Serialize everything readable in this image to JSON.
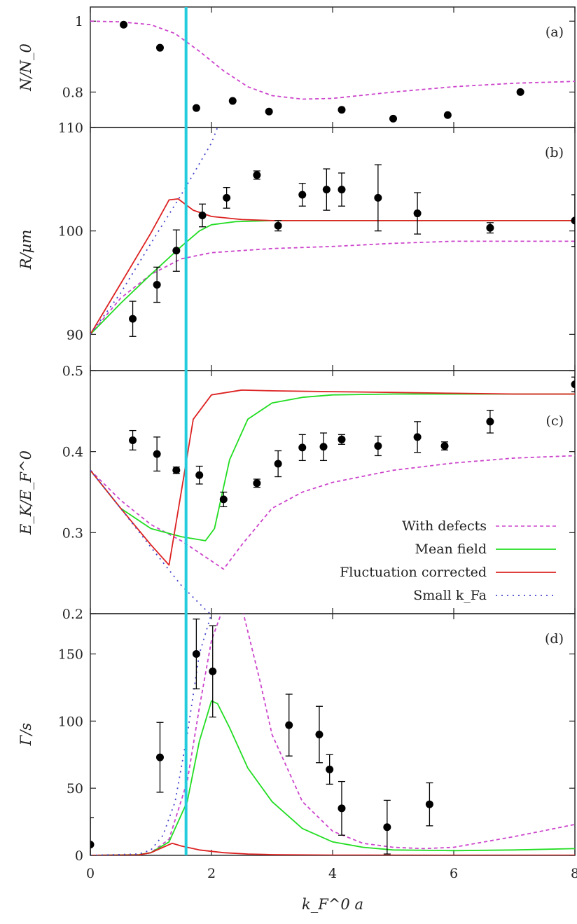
{
  "figure": {
    "xlabel": "k_F^0 a",
    "x_ticks": [
      "0",
      "2",
      "4",
      "6",
      "8"
    ],
    "xlim": [
      0,
      8
    ],
    "vertical_line": {
      "x": 1.58,
      "color": "#22ccdd"
    }
  },
  "legend": {
    "with_defects": "With defects",
    "mean_field": "Mean field",
    "fluct": "Fluctuation corrected",
    "small_kfa": "Small k_Fa"
  },
  "colors": {
    "with_defects": "#cc44cc",
    "mean_field": "#22dd22",
    "fluct": "#dd2222",
    "small_kfa": "#4444cc",
    "points": "#000000",
    "vline": "#22ccdd"
  },
  "chart_data": [
    {
      "type": "scatter",
      "panel": "(a)",
      "ylabel": "N/N_0",
      "ylim": [
        0.7,
        1.04
      ],
      "y_ticks": [
        1,
        0.8
      ],
      "y_tick_labels": [
        "1",
        "0.8"
      ],
      "points": [
        {
          "x": 0.55,
          "y": 0.99
        },
        {
          "x": 1.15,
          "y": 0.925
        },
        {
          "x": 1.75,
          "y": 0.755
        },
        {
          "x": 2.35,
          "y": 0.775
        },
        {
          "x": 2.95,
          "y": 0.745
        },
        {
          "x": 4.15,
          "y": 0.75
        },
        {
          "x": 5.0,
          "y": 0.725
        },
        {
          "x": 5.9,
          "y": 0.735
        },
        {
          "x": 7.1,
          "y": 0.8
        }
      ],
      "series": [
        {
          "key": "with_defects",
          "style": "dashed",
          "x": [
            0,
            0.5,
            1.0,
            1.4,
            1.8,
            2.2,
            2.6,
            3.0,
            3.5,
            4.0,
            5.0,
            6.0,
            7.0,
            8.0
          ],
          "y": [
            1.0,
            0.998,
            0.99,
            0.965,
            0.915,
            0.86,
            0.815,
            0.79,
            0.78,
            0.782,
            0.8,
            0.815,
            0.825,
            0.83
          ]
        }
      ]
    },
    {
      "type": "line",
      "panel": "(b)",
      "ylabel": "R/µm",
      "ylim": [
        86.5,
        110
      ],
      "y_ticks": [
        110,
        100,
        90
      ],
      "y_tick_labels": [
        "110",
        "100",
        "90"
      ],
      "points": [
        {
          "x": 0.7,
          "y": 91.5,
          "err": 1.7
        },
        {
          "x": 1.1,
          "y": 94.8,
          "err": 1.7
        },
        {
          "x": 1.42,
          "y": 98.1,
          "err": 2.0
        },
        {
          "x": 1.85,
          "y": 101.5,
          "err": 1.1
        },
        {
          "x": 2.25,
          "y": 103.2,
          "err": 1.0
        },
        {
          "x": 2.75,
          "y": 105.4,
          "err": 0.4
        },
        {
          "x": 3.1,
          "y": 100.5,
          "err": 0.5
        },
        {
          "x": 3.5,
          "y": 103.5,
          "err": 1.1
        },
        {
          "x": 3.9,
          "y": 104.0,
          "err": 2.0
        },
        {
          "x": 4.15,
          "y": 104.0,
          "err": 1.6
        },
        {
          "x": 4.75,
          "y": 103.2,
          "err": 3.2
        },
        {
          "x": 5.4,
          "y": 101.7,
          "err": 2.0
        },
        {
          "x": 6.6,
          "y": 100.3,
          "err": 0.5
        },
        {
          "x": 8.0,
          "y": 101.0,
          "err": 2.5
        }
      ],
      "series": [
        {
          "key": "with_defects",
          "style": "dashed",
          "x": [
            0,
            0.5,
            1.0,
            1.5,
            2.0,
            2.5,
            3.0,
            4.0,
            5.0,
            6.0,
            7.0,
            8.0
          ],
          "y": [
            90,
            93.5,
            95.8,
            97.3,
            97.9,
            98.1,
            98.3,
            98.5,
            98.8,
            99.0,
            99.0,
            99.0
          ]
        },
        {
          "key": "mean_field",
          "style": "solid",
          "x": [
            0,
            0.5,
            1.0,
            1.5,
            1.8,
            2.0,
            2.4,
            3.0,
            4.0,
            5.0,
            6.0,
            7.0,
            8.0
          ],
          "y": [
            90,
            93.0,
            95.8,
            98.5,
            100.0,
            100.6,
            100.9,
            101.0,
            101.0,
            101.0,
            101.0,
            101.0,
            101.0
          ]
        },
        {
          "key": "fluct",
          "style": "solid",
          "x": [
            0,
            0.5,
            1.0,
            1.3,
            1.45,
            1.7,
            2.0,
            2.5,
            3.0,
            4.0,
            5.0,
            6.0,
            7.0,
            8.0
          ],
          "y": [
            90,
            94.9,
            99.8,
            103.0,
            103.1,
            102.0,
            101.4,
            101.1,
            101.0,
            101.0,
            101.0,
            101.0,
            101.0,
            101.0
          ]
        },
        {
          "key": "small_kfa",
          "style": "dotted",
          "x": [
            0,
            0.5,
            1.0,
            1.5,
            2.0,
            2.1
          ],
          "y": [
            90,
            94.0,
            98.8,
            103.5,
            108.5,
            110.0
          ]
        }
      ]
    },
    {
      "type": "line",
      "panel": "(c)",
      "ylabel": "E_K/E_F^0",
      "ylim": [
        0.2,
        0.5
      ],
      "y_ticks": [
        0.5,
        0.4,
        0.3,
        0.2
      ],
      "y_tick_labels": [
        "0.5",
        "0.4",
        "0.3",
        "0.2"
      ],
      "points": [
        {
          "x": 0.7,
          "y": 0.414,
          "err": 0.012
        },
        {
          "x": 1.1,
          "y": 0.397,
          "err": 0.021
        },
        {
          "x": 1.42,
          "y": 0.377,
          "err": 0.004
        },
        {
          "x": 1.8,
          "y": 0.371,
          "err": 0.011
        },
        {
          "x": 2.2,
          "y": 0.341,
          "err": 0.009
        },
        {
          "x": 2.75,
          "y": 0.361,
          "err": 0.005
        },
        {
          "x": 3.1,
          "y": 0.385,
          "err": 0.016
        },
        {
          "x": 3.5,
          "y": 0.405,
          "err": 0.016
        },
        {
          "x": 3.85,
          "y": 0.406,
          "err": 0.017
        },
        {
          "x": 4.15,
          "y": 0.415,
          "err": 0.006
        },
        {
          "x": 4.75,
          "y": 0.407,
          "err": 0.012
        },
        {
          "x": 5.4,
          "y": 0.418,
          "err": 0.019
        },
        {
          "x": 5.85,
          "y": 0.407,
          "err": 0.005
        },
        {
          "x": 6.6,
          "y": 0.437,
          "err": 0.014
        },
        {
          "x": 8.0,
          "y": 0.483,
          "err": 0.009
        }
      ],
      "series": [
        {
          "key": "with_defects",
          "style": "dashed",
          "x": [
            0,
            0.5,
            1.0,
            1.5,
            2.0,
            2.2,
            2.5,
            3.0,
            3.5,
            4.0,
            5.0,
            6.0,
            7.0,
            8.0
          ],
          "y": [
            0.377,
            0.34,
            0.31,
            0.29,
            0.265,
            0.255,
            0.285,
            0.33,
            0.35,
            0.362,
            0.377,
            0.386,
            0.392,
            0.395
          ]
        },
        {
          "key": "mean_field",
          "style": "solid",
          "x": [
            0,
            0.5,
            1.0,
            1.5,
            1.9,
            2.05,
            2.3,
            2.6,
            3.0,
            3.5,
            4.0,
            5.0,
            6.0,
            7.0,
            8.0
          ],
          "y": [
            0.377,
            0.33,
            0.305,
            0.295,
            0.29,
            0.305,
            0.39,
            0.44,
            0.46,
            0.467,
            0.47,
            0.471,
            0.471,
            0.471,
            0.471
          ]
        },
        {
          "key": "fluct",
          "style": "solid",
          "x": [
            0,
            0.5,
            1.0,
            1.3,
            1.5,
            1.7,
            2.0,
            2.5,
            3.0,
            4.0,
            5.0,
            6.0,
            7.0,
            8.0
          ],
          "y": [
            0.377,
            0.33,
            0.285,
            0.26,
            0.35,
            0.44,
            0.47,
            0.476,
            0.475,
            0.474,
            0.473,
            0.472,
            0.471,
            0.471
          ]
        },
        {
          "key": "small_kfa",
          "style": "dotted",
          "x": [
            0,
            0.5,
            1.0,
            1.5,
            1.9,
            2.05
          ],
          "y": [
            0.377,
            0.33,
            0.282,
            0.235,
            0.205,
            0.195
          ]
        }
      ]
    },
    {
      "type": "line",
      "panel": "(d)",
      "ylabel": "Γ/s",
      "ylim": [
        0,
        180
      ],
      "y_ticks": [
        150,
        100,
        50,
        0
      ],
      "y_tick_labels": [
        "150",
        "100",
        "50",
        "0"
      ],
      "points": [
        {
          "x": 0.0,
          "y": 8,
          "err": 20
        },
        {
          "x": 1.15,
          "y": 73,
          "err": 26
        },
        {
          "x": 1.75,
          "y": 150,
          "err": 26
        },
        {
          "x": 2.02,
          "y": 137,
          "err": 34
        },
        {
          "x": 3.28,
          "y": 97,
          "err": 23
        },
        {
          "x": 3.78,
          "y": 90,
          "err": 21
        },
        {
          "x": 3.95,
          "y": 64,
          "err": 11
        },
        {
          "x": 4.15,
          "y": 35,
          "err": 20
        },
        {
          "x": 4.9,
          "y": 21,
          "err": 20
        },
        {
          "x": 5.6,
          "y": 38,
          "err": 16
        }
      ],
      "series": [
        {
          "key": "with_defects",
          "style": "dashed",
          "x": [
            0,
            0.8,
            1.0,
            1.3,
            1.6,
            1.8,
            2.0,
            2.2,
            2.35,
            2.5,
            2.8,
            3.0,
            3.5,
            4.0,
            4.5,
            5.0,
            5.5,
            6.0,
            7.0,
            8.0
          ],
          "y": [
            0,
            0.5,
            2,
            12,
            55,
            110,
            160,
            185,
            195,
            185,
            130,
            90,
            40,
            18,
            9,
            6,
            5,
            6,
            14,
            23
          ]
        },
        {
          "key": "mean_field",
          "style": "solid",
          "x": [
            0,
            0.8,
            1.0,
            1.3,
            1.6,
            1.8,
            2.0,
            2.1,
            2.3,
            2.6,
            3.0,
            3.5,
            4.0,
            4.5,
            5.0,
            6.0,
            7.0,
            8.0
          ],
          "y": [
            0,
            0.5,
            2,
            10,
            40,
            85,
            115,
            113,
            95,
            65,
            40,
            20,
            10,
            6,
            4,
            3.5,
            4,
            5
          ]
        },
        {
          "key": "fluct",
          "style": "solid",
          "x": [
            0,
            0.8,
            1.0,
            1.2,
            1.35,
            1.5,
            1.8,
            2.2,
            2.6,
            3.0,
            4.0,
            6.0,
            8.0
          ],
          "y": [
            0,
            0.3,
            2,
            6,
            9,
            7,
            4,
            2,
            1,
            0.5,
            0.2,
            0.1,
            0.1
          ]
        },
        {
          "key": "small_kfa",
          "style": "dotted",
          "x": [
            0,
            0.8,
            1.0,
            1.2,
            1.4,
            1.6,
            1.8,
            2.0
          ],
          "y": [
            0,
            1,
            4,
            15,
            40,
            90,
            150,
            180
          ]
        }
      ]
    }
  ]
}
